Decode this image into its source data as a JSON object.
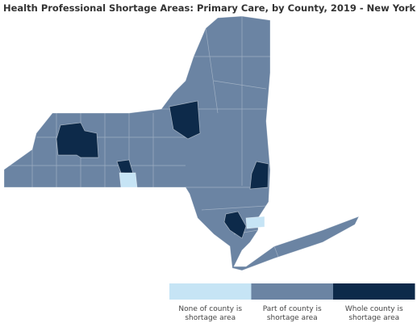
{
  "title": "Health Professional Shortage Areas: Primary Care, by County, 2019 - New York",
  "legend": [
    {
      "color": "#c6e4f5",
      "label_lines": [
        "None of county is",
        "shortage area"
      ]
    },
    {
      "color": "#6b84a3",
      "label_lines": [
        "Part of county is",
        "shortage area"
      ]
    },
    {
      "color": "#0d2a4a",
      "label_lines": [
        "Whole county is",
        "shortage area"
      ]
    }
  ]
}
